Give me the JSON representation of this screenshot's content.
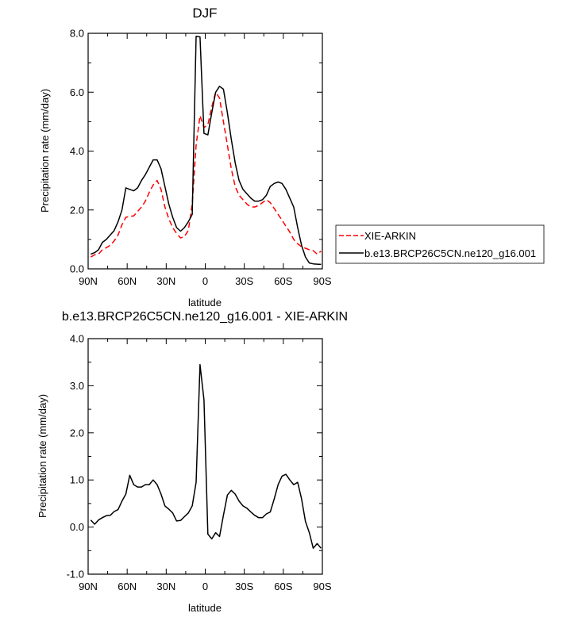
{
  "chart_data": [
    {
      "type": "line",
      "title": "DJF",
      "xlabel": "latitude",
      "ylabel": "Precipitation rate (mm/day)",
      "xlim": [
        -90,
        90
      ],
      "ylim": [
        0,
        8
      ],
      "xticks": [
        -90,
        -60,
        -30,
        0,
        30,
        60,
        90
      ],
      "xtick_labels": [
        "90N",
        "60N",
        "30N",
        "0",
        "30S",
        "60S",
        "90S"
      ],
      "yticks": [
        0,
        2,
        4,
        6,
        8
      ],
      "ytick_labels": [
        "0.0",
        "2.0",
        "4.0",
        "6.0",
        "8.0"
      ],
      "legend_position": "right",
      "series": [
        {
          "name": "XIE-ARKIN",
          "color": "#ff0000",
          "dash": "dashed",
          "x": [
            -88,
            -85,
            -82,
            -79,
            -76,
            -73,
            -70,
            -67,
            -64,
            -61,
            -58,
            -55,
            -52,
            -49,
            -46,
            -43,
            -40,
            -37,
            -34,
            -31,
            -28,
            -25,
            -22,
            -19,
            -16,
            -13,
            -10,
            -7,
            -4,
            -1,
            2,
            5,
            8,
            11,
            14,
            17,
            20,
            23,
            26,
            29,
            32,
            35,
            38,
            41,
            44,
            47,
            50,
            53,
            56,
            59,
            62,
            65,
            68,
            71,
            74,
            77,
            80,
            83,
            86,
            89
          ],
          "y": [
            0.4,
            0.48,
            0.5,
            0.65,
            0.72,
            0.8,
            0.95,
            1.15,
            1.5,
            1.75,
            1.78,
            1.8,
            1.95,
            2.1,
            2.3,
            2.6,
            2.85,
            3.0,
            2.7,
            2.1,
            1.7,
            1.4,
            1.2,
            1.05,
            1.1,
            1.3,
            2.2,
            4.2,
            5.2,
            4.8,
            4.9,
            5.5,
            6.0,
            5.8,
            5.0,
            4.2,
            3.4,
            2.8,
            2.5,
            2.35,
            2.2,
            2.1,
            2.1,
            2.15,
            2.25,
            2.35,
            2.25,
            2.05,
            1.85,
            1.65,
            1.45,
            1.25,
            1.0,
            0.85,
            0.75,
            0.7,
            0.65,
            0.62,
            0.5,
            0.6
          ]
        },
        {
          "name": "b.e13.BRCP26C5CN.ne120_g16.001",
          "color": "#000000",
          "dash": "solid",
          "x": [
            -88,
            -85,
            -82,
            -79,
            -76,
            -73,
            -70,
            -67,
            -64,
            -61,
            -58,
            -55,
            -52,
            -49,
            -46,
            -43,
            -40,
            -37,
            -34,
            -31,
            -28,
            -25,
            -22,
            -19,
            -16,
            -13,
            -10,
            -7,
            -4,
            -1,
            2,
            5,
            8,
            11,
            14,
            17,
            20,
            23,
            26,
            29,
            32,
            35,
            38,
            41,
            44,
            47,
            50,
            53,
            56,
            59,
            62,
            65,
            68,
            71,
            74,
            77,
            80,
            83,
            86,
            89
          ],
          "y": [
            0.5,
            0.55,
            0.65,
            0.9,
            1.0,
            1.15,
            1.3,
            1.6,
            2.0,
            2.75,
            2.7,
            2.65,
            2.75,
            3.0,
            3.2,
            3.45,
            3.7,
            3.7,
            3.4,
            2.8,
            2.2,
            1.75,
            1.4,
            1.28,
            1.4,
            1.6,
            1.85,
            7.9,
            7.88,
            4.6,
            4.55,
            5.3,
            6.0,
            6.2,
            6.1,
            5.3,
            4.4,
            3.6,
            3.0,
            2.7,
            2.55,
            2.4,
            2.3,
            2.3,
            2.35,
            2.5,
            2.8,
            2.9,
            2.95,
            2.9,
            2.7,
            2.4,
            2.1,
            1.4,
            0.8,
            0.4,
            0.2,
            0.17,
            0.16,
            0.15
          ]
        }
      ]
    },
    {
      "type": "line",
      "title": "b.e13.BRCP26C5CN.ne120_g16.001 - XIE-ARKIN",
      "xlabel": "latitude",
      "ylabel": "Precipitation rate (mm/day)",
      "xlim": [
        -90,
        90
      ],
      "ylim": [
        -1,
        4
      ],
      "xticks": [
        -90,
        -60,
        -30,
        0,
        30,
        60,
        90
      ],
      "xtick_labels": [
        "90N",
        "60N",
        "30N",
        "0",
        "30S",
        "60S",
        "90S"
      ],
      "yticks": [
        -1,
        0,
        1,
        2,
        3,
        4
      ],
      "ytick_labels": [
        "-1.0",
        "0.0",
        "1.0",
        "2.0",
        "3.0",
        "4.0"
      ],
      "series": [
        {
          "color": "#000000",
          "dash": "solid",
          "x": [
            -88,
            -85,
            -82,
            -79,
            -76,
            -73,
            -70,
            -67,
            -64,
            -61,
            -58,
            -55,
            -52,
            -49,
            -46,
            -43,
            -40,
            -37,
            -34,
            -31,
            -28,
            -25,
            -22,
            -19,
            -16,
            -13,
            -10,
            -7,
            -4,
            -1,
            2,
            5,
            8,
            11,
            14,
            17,
            20,
            23,
            26,
            29,
            32,
            35,
            38,
            41,
            44,
            47,
            50,
            53,
            56,
            59,
            62,
            65,
            68,
            71,
            74,
            77,
            80,
            83,
            86,
            89
          ],
          "y": [
            0.15,
            0.06,
            0.15,
            0.2,
            0.24,
            0.25,
            0.33,
            0.37,
            0.55,
            0.7,
            1.1,
            0.9,
            0.85,
            0.85,
            0.9,
            0.9,
            1.0,
            0.9,
            0.7,
            0.45,
            0.38,
            0.3,
            0.13,
            0.14,
            0.22,
            0.3,
            0.45,
            0.95,
            3.45,
            2.7,
            -0.15,
            -0.25,
            -0.12,
            -0.2,
            0.25,
            0.68,
            0.78,
            0.7,
            0.55,
            0.45,
            0.4,
            0.32,
            0.25,
            0.2,
            0.2,
            0.28,
            0.32,
            0.6,
            0.9,
            1.08,
            1.12,
            1.0,
            0.9,
            0.95,
            0.6,
            0.12,
            -0.12,
            -0.45,
            -0.35,
            -0.45
          ]
        }
      ]
    }
  ]
}
